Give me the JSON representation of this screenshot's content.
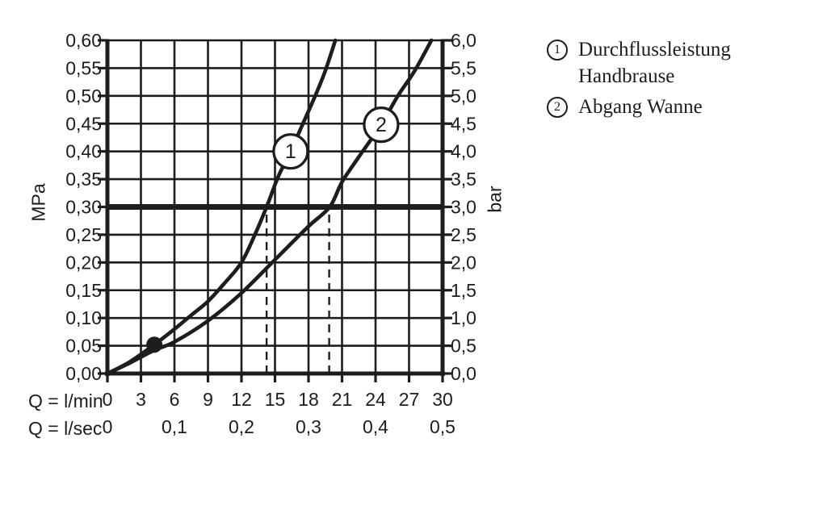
{
  "page": {
    "background": "#ffffff",
    "ink": "#1d1d1b"
  },
  "legend": {
    "items": [
      {
        "num": "1",
        "label": "Durchflussleistung Handbrause"
      },
      {
        "num": "2",
        "label": "Abgang Wanne"
      }
    ]
  },
  "chart_data": {
    "type": "line",
    "title": "",
    "x_axis": {
      "label_primary": "Q = l/min",
      "label_secondary": "Q = l/sec",
      "range_lmin": [
        0,
        30
      ],
      "ticks_lmin": [
        "0",
        "3",
        "6",
        "9",
        "12",
        "15",
        "18",
        "21",
        "24",
        "27",
        "30"
      ],
      "ticks_lsec": {
        "labels": [
          "0",
          "0,1",
          "0,2",
          "0,3",
          "0,4",
          "0,5"
        ],
        "positions_lmin": [
          0,
          6,
          12,
          18,
          24,
          30
        ]
      }
    },
    "y_axis_left": {
      "label": "MPa",
      "range": [
        0,
        0.6
      ],
      "ticks": [
        "0,60",
        "0,55",
        "0,50",
        "0,45",
        "0,40",
        "0,35",
        "0,30",
        "0,25",
        "0,20",
        "0,15",
        "0,10",
        "0,05",
        "0,00"
      ]
    },
    "y_axis_right": {
      "label": "bar",
      "range": [
        0,
        6
      ],
      "ticks": [
        "6,0",
        "5,5",
        "5,0",
        "4,5",
        "4,0",
        "3,5",
        "3,0",
        "2,5",
        "2,0",
        "1,5",
        "1,0",
        "0,5",
        "0,0"
      ]
    },
    "grid": {
      "x_step_lmin": 3,
      "y_step_mpa": 0.05,
      "on": true
    },
    "series": [
      {
        "name": "Durchflussleistung Handbrause",
        "marker": "1",
        "marker_at": {
          "x": 16.4,
          "y": 0.4
        },
        "points": [
          [
            0,
            0
          ],
          [
            2,
            0.021
          ],
          [
            4.2,
            0.052
          ],
          [
            6,
            0.08
          ],
          [
            7.5,
            0.105
          ],
          [
            9,
            0.13
          ],
          [
            10.5,
            0.163
          ],
          [
            12,
            0.2
          ],
          [
            13.2,
            0.25
          ],
          [
            14.25,
            0.3
          ],
          [
            15.3,
            0.355
          ],
          [
            16.4,
            0.4
          ],
          [
            17.5,
            0.45
          ],
          [
            18.6,
            0.5
          ],
          [
            19.5,
            0.545
          ],
          [
            20.4,
            0.6
          ]
        ]
      },
      {
        "name": "Abgang Wanne",
        "marker": "2",
        "marker_at": {
          "x": 24.5,
          "y": 0.448
        },
        "points": [
          [
            0,
            0
          ],
          [
            2,
            0.019
          ],
          [
            4.2,
            0.042
          ],
          [
            6,
            0.057
          ],
          [
            9,
            0.095
          ],
          [
            12,
            0.145
          ],
          [
            15,
            0.205
          ],
          [
            18,
            0.265
          ],
          [
            19.9,
            0.3
          ],
          [
            21,
            0.345
          ],
          [
            22.5,
            0.39
          ],
          [
            24.5,
            0.448
          ],
          [
            26,
            0.5
          ],
          [
            27.5,
            0.545
          ],
          [
            29,
            0.6
          ]
        ]
      }
    ],
    "annotations": {
      "bold_hline_mpa": 0.3,
      "dashed_vlines_lmin": [
        14.25,
        19.85
      ],
      "dot": {
        "x": 4.2,
        "y": 0.052
      },
      "readings_at_3_bar_lmin": {
        "curve_1": 14.25,
        "curve_2": 19.85
      }
    }
  }
}
